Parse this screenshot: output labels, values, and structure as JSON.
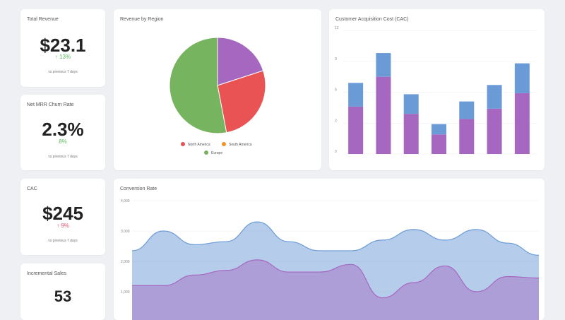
{
  "kpis": {
    "total_revenue": {
      "title": "Total Revenue",
      "value": "$23.1",
      "delta": "↑ 13%",
      "sub": "vs previous 7 days",
      "delta_color": "#5cb85c"
    },
    "churn": {
      "title": "Net MRR Churn Rate",
      "value": "2.3%",
      "delta": "8%",
      "sub": "vs previous 7 days",
      "delta_color": "#5cb85c"
    },
    "cac": {
      "title": "CAC",
      "value": "$245",
      "delta": "↑ 9%",
      "sub": "vs previous 7 days",
      "delta_color": "#e0506a"
    },
    "incremental_sales": {
      "title": "Incremental Sales",
      "value": "53"
    }
  },
  "pie_card": {
    "title": "Revenue  by Region"
  },
  "cac_card": {
    "title": "Customer Acquisition Cost (CAC)"
  },
  "conversion_card": {
    "title": "Conversion Rate"
  },
  "chart_data": [
    {
      "type": "pie",
      "title": "Revenue  by Region",
      "slices": [
        {
          "label": "Europe",
          "value": 53,
          "color": "#77b460"
        },
        {
          "label": "North America",
          "value": 27,
          "color": "#e95353"
        },
        {
          "label": "",
          "value": 20,
          "color": "#a667c0"
        }
      ],
      "legend": [
        {
          "label": "North America",
          "color": "#e95353"
        },
        {
          "label": "South America",
          "color": "#f0932b"
        },
        {
          "label": "Europe",
          "color": "#77b460"
        }
      ],
      "legend_position": "bottom"
    },
    {
      "type": "bar",
      "title": "Customer Acquisition Cost (CAC)",
      "stacked": true,
      "ylim": [
        0,
        12
      ],
      "yticks": [
        "0",
        "3",
        "6",
        "9",
        "12"
      ],
      "series": [
        {
          "values": [
            4.6,
            7.5,
            3.9,
            1.9,
            3.4,
            4.4,
            5.9
          ],
          "color": "#a667c0"
        },
        {
          "values": [
            2.3,
            2.3,
            1.9,
            1.0,
            1.7,
            2.3,
            2.9
          ],
          "color": "#6b9bd6"
        }
      ],
      "grid": true
    },
    {
      "type": "area",
      "title": "Conversion Rate",
      "ylim": [
        0,
        4000
      ],
      "yticks": [
        "1,000",
        "2,000",
        "3,000",
        "4,000"
      ],
      "x": [
        0,
        1,
        2,
        3,
        4,
        5,
        6,
        7,
        8,
        9,
        10,
        11,
        12,
        13
      ],
      "series": [
        {
          "values": [
            2350,
            3000,
            2550,
            2650,
            3300,
            2650,
            2350,
            2350,
            2700,
            3050,
            2700,
            3050,
            2600,
            2200
          ],
          "color": "#6b9bd6"
        },
        {
          "values": [
            1200,
            1200,
            1550,
            1700,
            2050,
            1650,
            1650,
            1900,
            800,
            1300,
            1850,
            1000,
            1500,
            1450
          ],
          "color": "#a667c0"
        }
      ],
      "grid": true
    }
  ]
}
